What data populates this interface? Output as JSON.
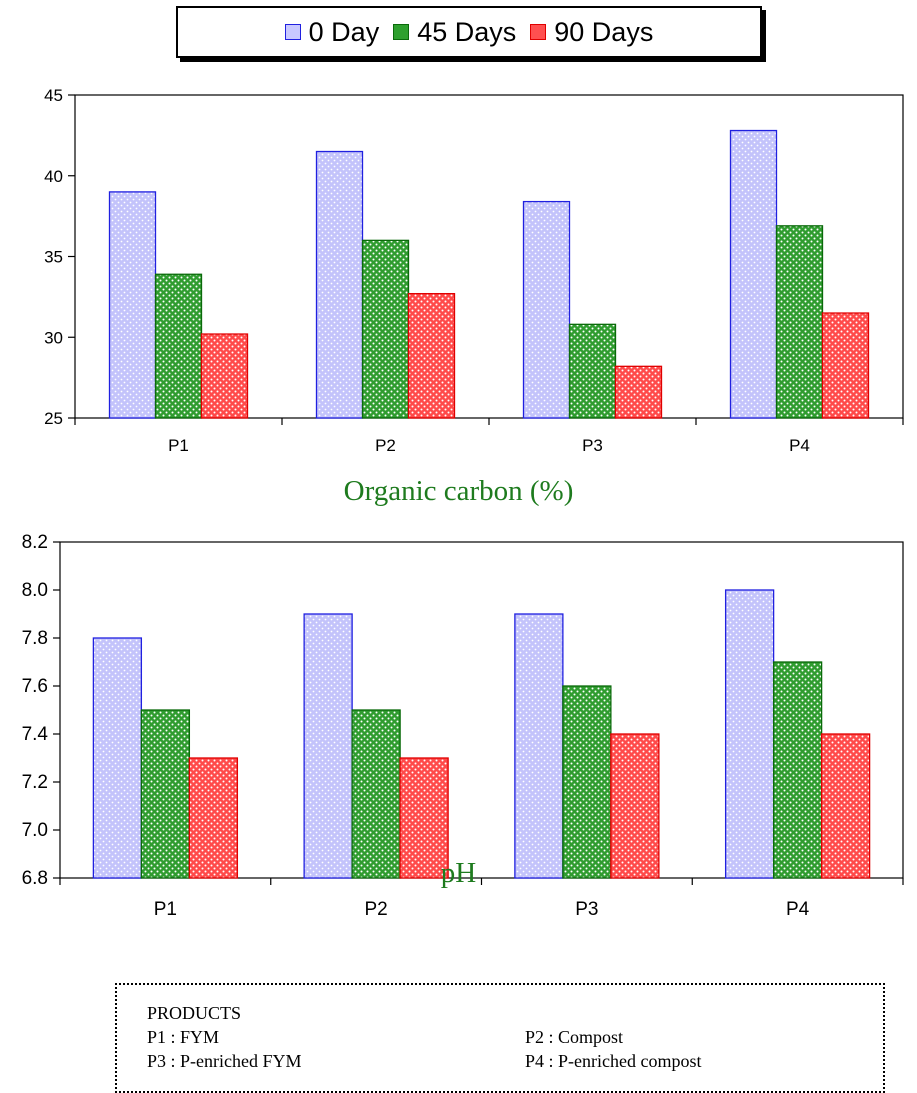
{
  "legend": {
    "items": [
      {
        "label": "0 Day",
        "fill": "#c8c8ff",
        "stroke": "#2020e0"
      },
      {
        "label": "45 Days",
        "fill": "#2ea02e",
        "stroke": "#0a6a0a"
      },
      {
        "label": "90 Days",
        "fill": "#ff5050",
        "stroke": "#e00000"
      }
    ]
  },
  "chart_data": [
    {
      "type": "bar",
      "title": "Organic carbon (%)",
      "categories": [
        "P1",
        "P2",
        "P3",
        "P4"
      ],
      "series": [
        {
          "name": "0 Day",
          "values": [
            39.0,
            41.5,
            38.4,
            42.8
          ]
        },
        {
          "name": "45 Days",
          "values": [
            33.9,
            36.0,
            30.8,
            36.9
          ]
        },
        {
          "name": "90 Days",
          "values": [
            30.2,
            32.7,
            28.2,
            31.5
          ]
        }
      ],
      "ylim": [
        25,
        45
      ],
      "yticks": [
        "25",
        "30",
        "35",
        "40",
        "45"
      ],
      "grid": false,
      "legend": "top"
    },
    {
      "type": "bar",
      "title": "pH",
      "categories": [
        "P1",
        "P2",
        "P3",
        "P4"
      ],
      "series": [
        {
          "name": "0 Day",
          "values": [
            7.8,
            7.9,
            7.9,
            8.0
          ]
        },
        {
          "name": "45 Days",
          "values": [
            7.5,
            7.5,
            7.6,
            7.7
          ]
        },
        {
          "name": "90 Days",
          "values": [
            7.3,
            7.3,
            7.4,
            7.4
          ]
        }
      ],
      "ylim": [
        6.8,
        8.2
      ],
      "yticks": [
        "6.8",
        "7.0",
        "7.2",
        "7.4",
        "7.6",
        "7.8",
        "8.0",
        "8.2"
      ],
      "grid": false,
      "legend": "top"
    }
  ],
  "products": {
    "title": "PRODUCTS",
    "items": [
      "P1 : FYM",
      "P2 : Compost",
      "P3 : P-enriched FYM",
      "P4 : P-enriched compost"
    ]
  }
}
